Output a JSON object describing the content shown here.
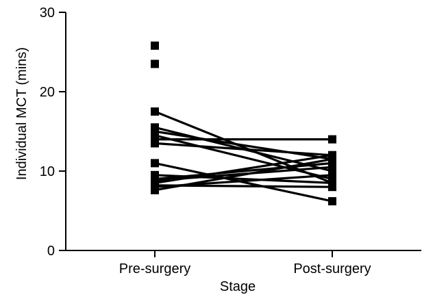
{
  "chart_data": {
    "type": "scatter",
    "title": "",
    "xlabel": "Stage",
    "ylabel": "Individual MCT (mins)",
    "categories": [
      "Pre-surgery",
      "Post-surgery"
    ],
    "ylim": [
      0,
      30
    ],
    "yticks": [
      0,
      10,
      20,
      30
    ],
    "grid": false,
    "marker": "square",
    "color": "#000000",
    "paired": [
      {
        "pre": 17.5,
        "post": 8.5
      },
      {
        "pre": 15.5,
        "post": 10.0
      },
      {
        "pre": 15.0,
        "post": 11.5
      },
      {
        "pre": 14.5,
        "post": 9.0
      },
      {
        "pre": 14.0,
        "post": 14.0
      },
      {
        "pre": 13.5,
        "post": 12.0
      },
      {
        "pre": 11.0,
        "post": 6.2
      },
      {
        "pre": 9.5,
        "post": 8.5
      },
      {
        "pre": 9.0,
        "post": 11.0
      },
      {
        "pre": 8.8,
        "post": 10.5
      },
      {
        "pre": 8.5,
        "post": 12.0
      },
      {
        "pre": 8.2,
        "post": 8.0
      },
      {
        "pre": 8.0,
        "post": 9.5
      },
      {
        "pre": 7.6,
        "post": 11.5
      }
    ],
    "unpaired": [
      {
        "group": "Pre-surgery",
        "value": 25.8
      },
      {
        "group": "Pre-surgery",
        "value": 23.5
      }
    ]
  }
}
